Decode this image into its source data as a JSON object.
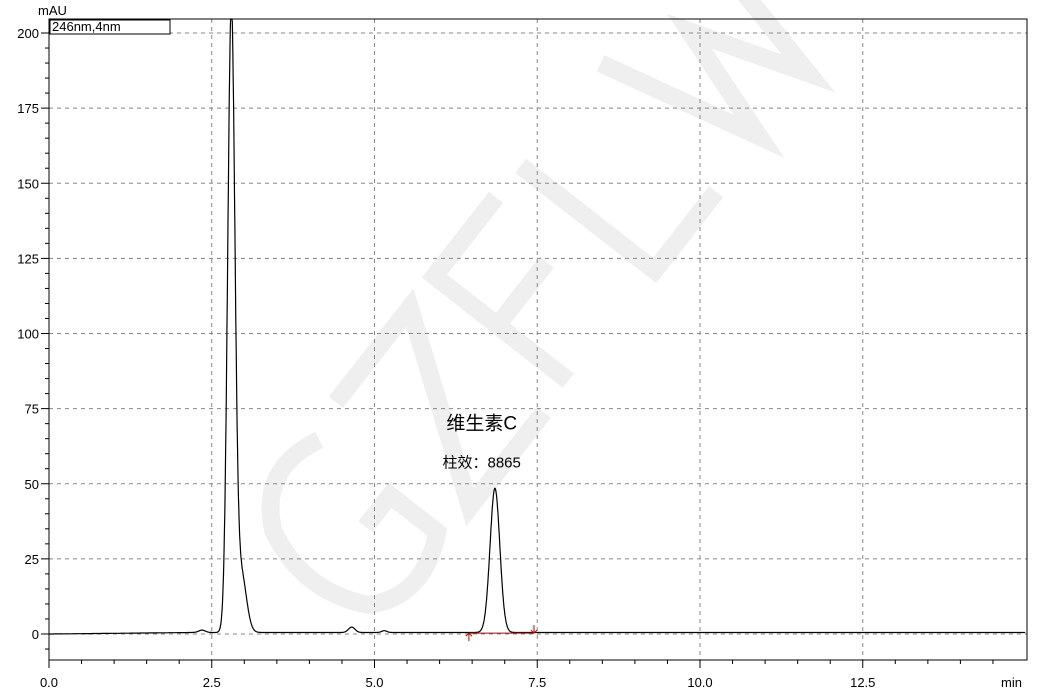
{
  "chart_data": {
    "type": "line",
    "ylabel": "mAU",
    "xlabel": "min",
    "channel_label": "246nm,4nm",
    "xlim": [
      0,
      15
    ],
    "ylim": [
      -8,
      205
    ],
    "x_ticks": [
      "0.0",
      "2.5",
      "5.0",
      "7.5",
      "10.0",
      "12.5"
    ],
    "y_ticks": [
      "0",
      "25",
      "50",
      "75",
      "100",
      "125",
      "150",
      "175",
      "200"
    ],
    "grid": true,
    "baseline": 0.5,
    "peaks": [
      {
        "rt": 2.35,
        "height": 0.8,
        "sigma": 0.05
      },
      {
        "rt": 2.8,
        "height": 206,
        "sigma": 0.055
      },
      {
        "rt": 2.95,
        "height": 20,
        "sigma": 0.08
      },
      {
        "rt": 4.65,
        "height": 1.8,
        "sigma": 0.05
      },
      {
        "rt": 5.15,
        "height": 0.6,
        "sigma": 0.04
      },
      {
        "rt": 6.85,
        "height": 48,
        "sigma": 0.075
      }
    ],
    "integration": {
      "start": 6.45,
      "end": 7.45,
      "color": "#c00000"
    },
    "annotation": {
      "compound": "维生素C",
      "efficiency": "柱效：8865",
      "x": 6.8,
      "y": 70
    },
    "line_color": "#000000",
    "watermark": "GZFLW"
  }
}
